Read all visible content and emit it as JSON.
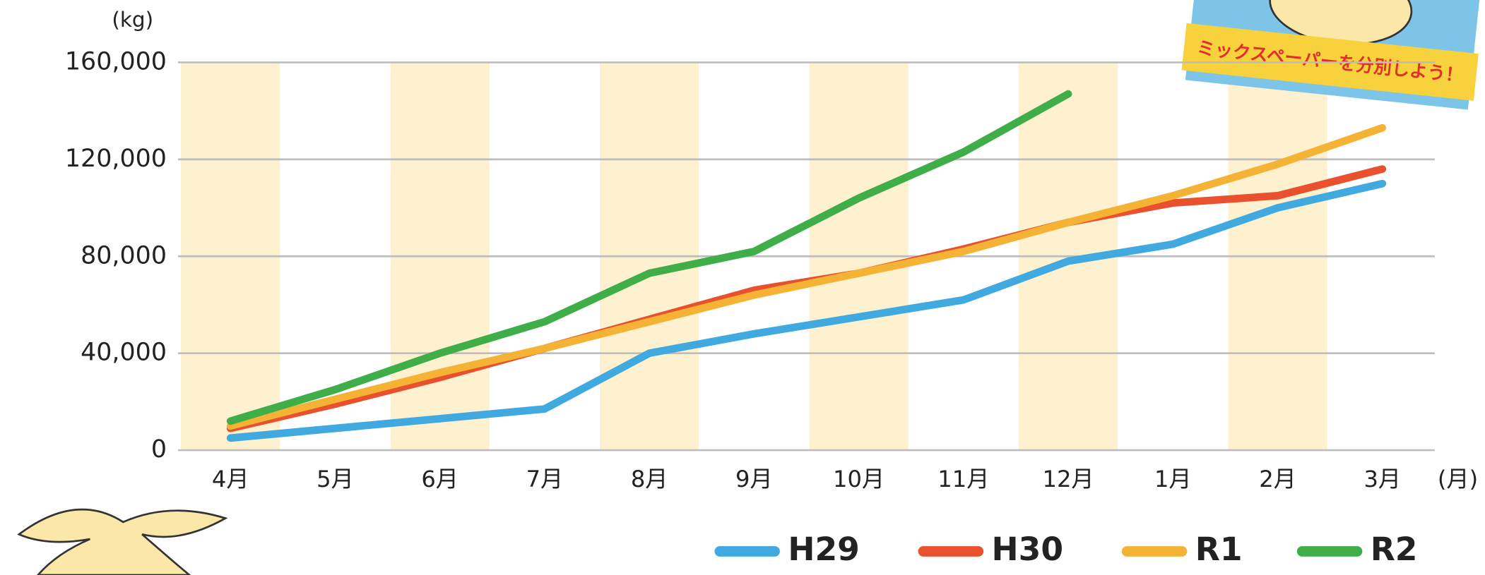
{
  "chart_data": {
    "type": "line",
    "y_unit_label": "(kg)",
    "x_unit_label": "(月)",
    "annotation": "ミックスペーパーを分別しよう！",
    "categories": [
      "4月",
      "5月",
      "6月",
      "7月",
      "8月",
      "9月",
      "10月",
      "11月",
      "12月",
      "1月",
      "2月",
      "3月"
    ],
    "series": [
      {
        "name": "H29",
        "color": "#3fa9e0",
        "values": [
          5000,
          9000,
          13000,
          17000,
          40000,
          48000,
          55000,
          62000,
          78000,
          85000,
          100000,
          110000
        ]
      },
      {
        "name": "H30",
        "color": "#e8502e",
        "values": [
          9000,
          19000,
          30000,
          42000,
          54000,
          66000,
          73000,
          83000,
          94000,
          102000,
          105000,
          116000
        ]
      },
      {
        "name": "R1",
        "color": "#f5b335",
        "values": [
          10000,
          21000,
          32000,
          42000,
          53000,
          64000,
          73000,
          82000,
          94000,
          105000,
          118000,
          133000
        ]
      },
      {
        "name": "R2",
        "color": "#3fae49",
        "values": [
          12000,
          25000,
          40000,
          53000,
          73000,
          82000,
          104000,
          123000,
          147000,
          null,
          null,
          null
        ]
      }
    ],
    "ylim": [
      0,
      160000
    ],
    "yticks": [
      0,
      {
        "value": 40000,
        "label": "40,000"
      },
      {
        "value": 80000,
        "label": "80,000"
      },
      {
        "value": 120000,
        "label": "120,000"
      },
      {
        "value": 160000,
        "label": "160,000"
      }
    ],
    "grid": true,
    "band_color": "#fdf1cf",
    "legend": "bottom-right"
  }
}
